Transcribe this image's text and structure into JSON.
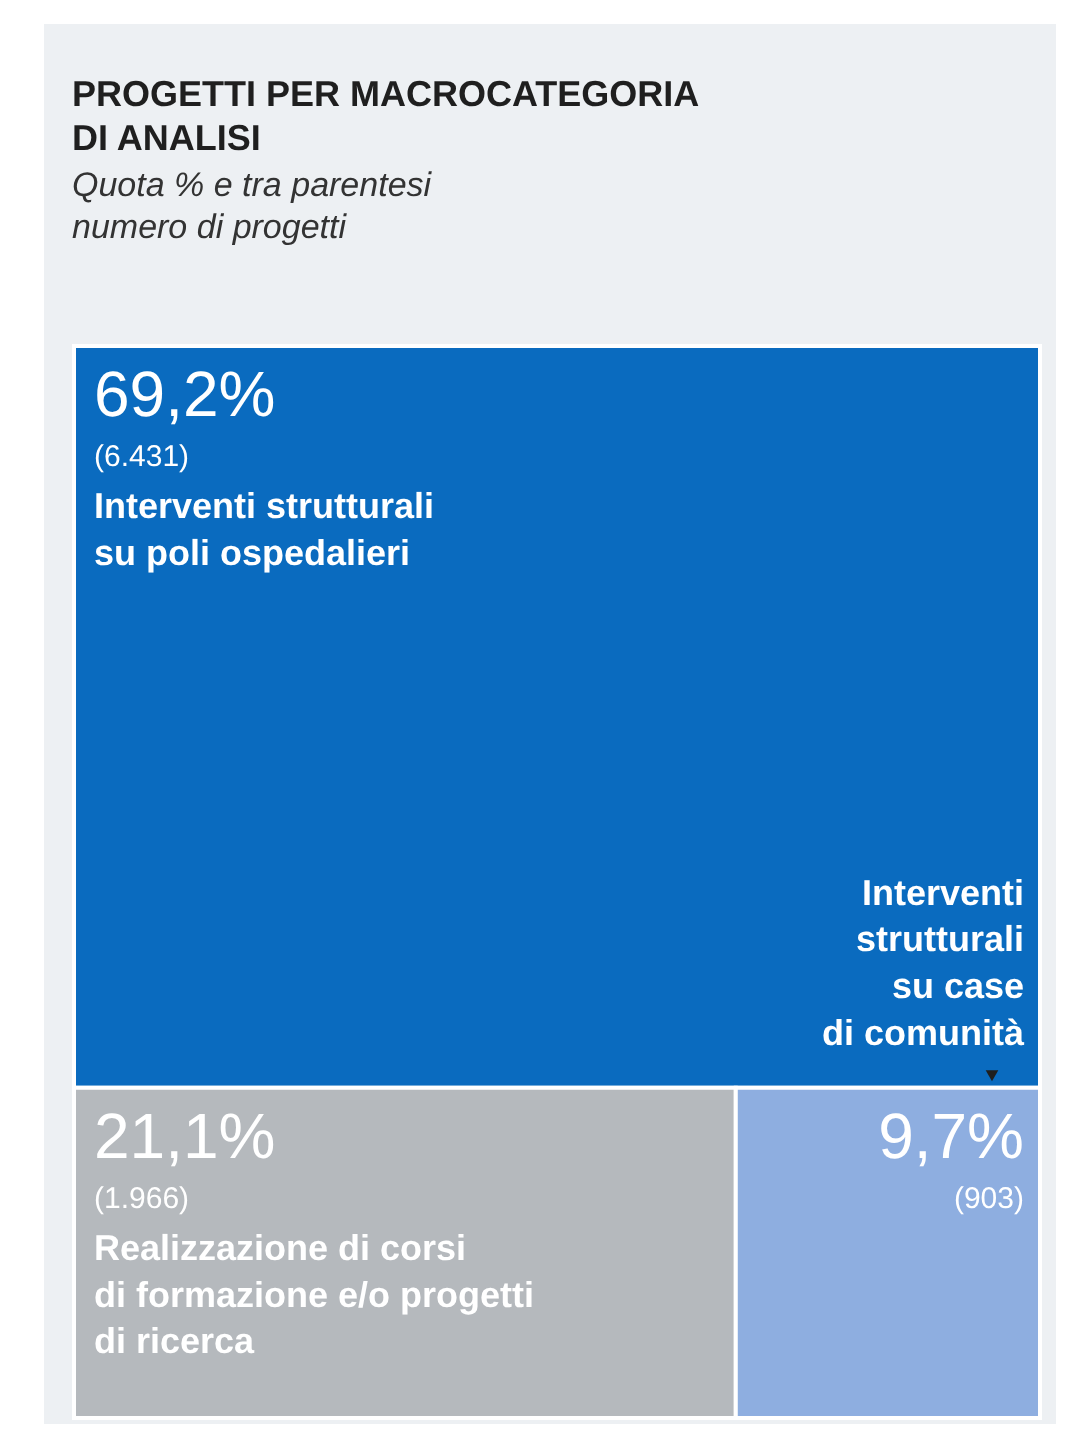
{
  "chart_data": {
    "type": "other",
    "title": "PROGETTI PER MACROCATEGORIA DI ANALISI",
    "subtitle": "Quota % e tra parentesi numero di progetti",
    "categories": [
      "Interventi strutturali\nsu poli ospedalieri",
      "Realizzazione di corsi\ndi formazione e/o progetti\ndi ricerca",
      "Interventi\nstrutturali\nsu case\ndi comunità"
    ],
    "values": [
      69.2,
      21.1,
      9.7
    ],
    "value_labels": [
      "69,2%",
      "21,1%",
      "9,7%"
    ],
    "annotations": [
      "(6.431)",
      "(1.966)",
      "(903)"
    ],
    "colors": [
      "#0a6bbf",
      "#b5b9bd",
      "#8eaee0"
    ]
  }
}
